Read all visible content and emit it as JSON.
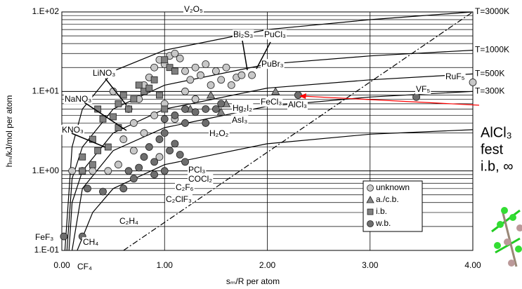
{
  "chart_data": {
    "type": "scatter",
    "xlabel": "sₘ/R per atom",
    "ylabel": "hₘ/kJ/mol per atom",
    "xlim": [
      0,
      4
    ],
    "xticks": [
      {
        "value": 0,
        "label": "0.00"
      },
      {
        "value": 1,
        "label": "1.00"
      },
      {
        "value": 2,
        "label": "2.00"
      },
      {
        "value": 3,
        "label": "3.00"
      },
      {
        "value": 4,
        "label": "4.00"
      }
    ],
    "ylim": [
      0.1,
      100
    ],
    "log_y": true,
    "yticks": [
      {
        "value": 0.1,
        "label": "1.E-01"
      },
      {
        "value": 1,
        "label": "1.E+00"
      },
      {
        "value": 10,
        "label": "1.E+01"
      },
      {
        "value": 100,
        "label": "1.E+02"
      }
    ],
    "yminorticks": [
      0.2,
      0.3,
      0.4,
      0.5,
      0.6,
      0.7,
      0.8,
      0.9,
      2,
      3,
      4,
      5,
      6,
      7,
      8,
      9,
      20,
      30,
      40,
      50,
      60,
      70,
      80,
      90
    ],
    "grid": true,
    "legend": "lower-right",
    "series": [
      {
        "name": "unknown",
        "marker": "circle",
        "color": "#c8c8c8",
        "x": [
          0.1,
          0.2,
          0.3,
          0.45,
          0.55,
          0.6,
          0.7,
          0.75,
          0.8,
          0.85,
          0.9,
          0.95,
          1.0,
          1.05,
          1.1,
          1.15,
          1.2,
          1.25,
          1.3,
          1.35,
          1.4,
          1.45,
          1.5,
          1.55,
          1.6,
          1.65,
          1.7,
          1.75,
          1.85,
          0.9,
          1.0,
          0.8,
          0.7,
          1.1,
          0.95,
          1.2,
          4.0,
          1.3,
          0.65,
          0.5
        ],
        "values": [
          1.0,
          1.0,
          1.0,
          1.0,
          1.2,
          2.5,
          4,
          8,
          12,
          15,
          20,
          25,
          22,
          28,
          30,
          26,
          18,
          14,
          20,
          16,
          22,
          12,
          18,
          14,
          20,
          12,
          15,
          16,
          16,
          5,
          7,
          3,
          1.8,
          4.5,
          1.5,
          10,
          13,
          8,
          6,
          10
        ]
      },
      {
        "name": "a./c.b.",
        "marker": "triangle",
        "color": "#888888",
        "x": [
          2.08,
          1.55,
          1.6,
          1.45,
          1.25
        ],
        "values": [
          10,
          5.5,
          7,
          9,
          6
        ]
      },
      {
        "name": "i.b.",
        "marker": "square",
        "color": "#808080",
        "x": [
          0.2,
          0.2,
          0.3,
          0.35,
          0.4,
          0.45,
          0.5,
          0.55,
          0.6,
          0.65,
          0.7,
          0.75,
          0.8,
          0.85,
          0.9,
          0.95,
          1.0,
          1.05,
          1.1,
          1.0,
          0.55,
          0.35,
          0.3
        ],
        "values": [
          1.0,
          1.5,
          2.5,
          1.8,
          4.5,
          2.0,
          4.8,
          3.5,
          9,
          6,
          8,
          12,
          10,
          11,
          14,
          9,
          25,
          20,
          18,
          6,
          7,
          6,
          1.2
        ]
      },
      {
        "name": "w.b.",
        "marker": "circle",
        "color": "#6e6e6e",
        "x": [
          0.02,
          0.2,
          0.25,
          0.4,
          0.6,
          0.65,
          0.75,
          0.8,
          0.85,
          0.9,
          0.95,
          1.0,
          1.05,
          1.1,
          1.15,
          1.2,
          1.0,
          0.9,
          0.7,
          1.1,
          1.2,
          1.3,
          1.4,
          1.5,
          1.55,
          1.4,
          2.3,
          3.45,
          1.2,
          1.0
        ],
        "values": [
          0.15,
          0.15,
          0.6,
          0.55,
          0.6,
          1.0,
          1.1,
          1.5,
          2,
          1.3,
          2.5,
          3,
          1.8,
          2.2,
          1.6,
          1.3,
          1.0,
          0.9,
          0.8,
          5,
          6,
          5.5,
          6,
          6,
          7,
          4,
          9,
          8.5,
          4,
          4.5
        ]
      }
    ],
    "lines": [
      {
        "name": "T=3000K",
        "style": "solid",
        "x": [
          0.03,
          0.1,
          0.2,
          0.5,
          1,
          2,
          3,
          4
        ],
        "values": [
          0.1,
          2,
          6,
          18,
          33,
          60,
          80,
          100
        ]
      },
      {
        "name": "T=1000K",
        "style": "solid",
        "x": [
          0.05,
          0.1,
          0.2,
          0.5,
          1,
          2,
          3,
          4
        ],
        "values": [
          0.1,
          0.8,
          2,
          6,
          12,
          22,
          28,
          33
        ]
      },
      {
        "name": "T=500K",
        "style": "solid",
        "x": [
          0.07,
          0.1,
          0.2,
          0.5,
          1,
          2,
          3,
          4
        ],
        "values": [
          0.1,
          0.4,
          1,
          3,
          6,
          11,
          14,
          16.6
        ]
      },
      {
        "name": "T=300K",
        "style": "solid",
        "x": [
          0.1,
          0.2,
          0.5,
          1,
          2,
          3,
          4
        ],
        "values": [
          0.1,
          0.6,
          1.8,
          3.5,
          6.5,
          8.5,
          10
        ]
      },
      {
        "style": "solid",
        "x": [
          0.15,
          0.3,
          0.5,
          1,
          2,
          3,
          4
        ],
        "values": [
          0.1,
          0.3,
          0.6,
          1.2,
          2.2,
          2.9,
          3.3
        ]
      },
      {
        "style": "dashdot",
        "x": [
          0.6,
          4
        ],
        "values": [
          0.1,
          100
        ]
      }
    ],
    "annotations": [
      "V₂O₅",
      "Bi₂S₃",
      "PuCl₃",
      "LiNO₃",
      "PuBr₃",
      "RuF₅",
      "VF₅",
      "NaNO₃",
      "FeCl₃",
      "AlCl₃",
      "Hg₂I₂",
      "AsI₃",
      "KNO₃",
      "H₂O₂",
      "PCl₃",
      "COCl₂",
      "C₂F₆",
      "C₂ClF₃",
      "C₂H₄",
      "CH₄",
      "FeF₃",
      "CF₄"
    ],
    "notes": [
      "AlCl₃",
      "fest",
      "i.b, ∞"
    ],
    "note_color": "#ff0000"
  }
}
